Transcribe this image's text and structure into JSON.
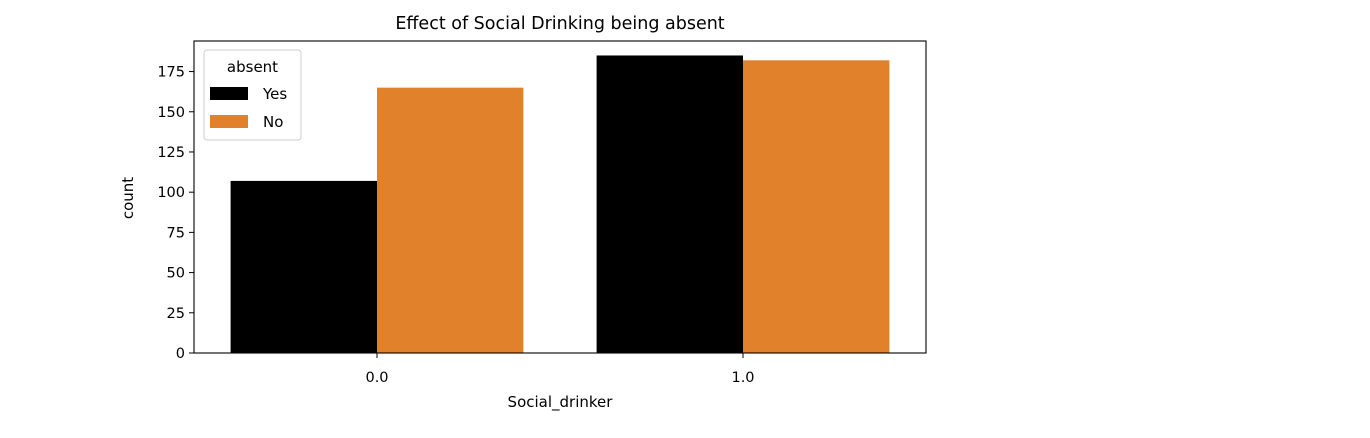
{
  "chart_data": {
    "type": "bar",
    "title": "Effect of Social Drinking being absent",
    "xlabel": "Social_drinker",
    "ylabel": "count",
    "categories": [
      "0.0",
      "1.0"
    ],
    "series": [
      {
        "name": "Yes",
        "values": [
          107,
          185
        ],
        "color": "#000000"
      },
      {
        "name": "No",
        "values": [
          165,
          182
        ],
        "color": "#e1812c"
      }
    ],
    "ylim": [
      0,
      194
    ],
    "yticks": [
      0,
      25,
      50,
      75,
      100,
      125,
      150,
      175
    ],
    "ytick_labels": [
      "0",
      "25",
      "50",
      "75",
      "100",
      "125",
      "150",
      "175"
    ],
    "legend": {
      "title": "absent",
      "placement": "top-left"
    },
    "grid": false
  }
}
